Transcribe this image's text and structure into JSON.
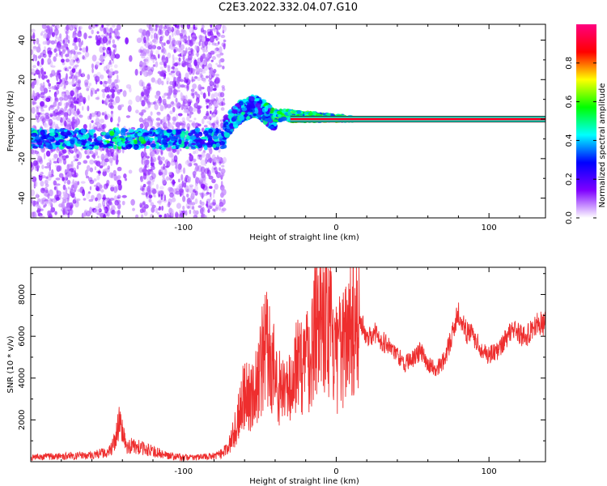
{
  "title": "C2E3.2022.332.04.07.G10",
  "chart_data": [
    {
      "type": "heatmap",
      "xlabel": "Height of straight line (km)",
      "ylabel": "Frequency (Hz)",
      "xlim": [
        -200,
        137
      ],
      "ylim": [
        -50,
        48
      ],
      "xticks": [
        -100,
        0,
        100
      ],
      "yticks": [
        -40,
        -20,
        0,
        20,
        40
      ],
      "grid": false,
      "colorbar": {
        "label": "Normalized spectral amplitude",
        "range": [
          0,
          1
        ],
        "ticks": [
          0.0,
          0.2,
          0.4,
          0.6,
          0.8
        ],
        "colors": [
          "#ffffff",
          "#7f00ff",
          "#0000ff",
          "#00ffff",
          "#00ff00",
          "#ffff00",
          "#ff0000",
          "#ff0080"
        ]
      },
      "features": [
        {
          "name": "diffuse noise region",
          "x_range": [
            -200,
            -73
          ],
          "y_range": [
            -50,
            48
          ],
          "amplitude": 0.1
        },
        {
          "name": "signal band",
          "x_range": [
            -200,
            -73
          ],
          "y_center": -10,
          "amplitude": 0.35
        },
        {
          "name": "signal rising",
          "x_range": [
            -73,
            -40
          ],
          "y_from": -5,
          "y_to": 6,
          "amplitude": 0.3
        },
        {
          "name": "signal converging",
          "x_range": [
            -40,
            12
          ],
          "y_center": 0,
          "amplitude": 0.6
        },
        {
          "name": "steady signal line",
          "x_range": [
            -30,
            137
          ],
          "y_center": 0,
          "amplitude": 0.9
        }
      ]
    },
    {
      "type": "line",
      "xlabel": "Height of straight line (km)",
      "ylabel": "SNR (10 * v/v)",
      "xlim": [
        -200,
        137
      ],
      "ylim": [
        0,
        9300
      ],
      "xticks": [
        -100,
        0,
        100
      ],
      "yticks": [
        2000,
        4000,
        6000,
        8000
      ],
      "grid": false,
      "color": "#ee2e2e",
      "series": [
        {
          "x": [
            -200,
            -190,
            -180,
            -170,
            -160,
            -150,
            -145,
            -142,
            -138,
            -130,
            -120,
            -110,
            -100,
            -90,
            -80,
            -75,
            -70,
            -65,
            -60,
            -55,
            -50,
            -45,
            -40,
            -35,
            -30,
            -25,
            -20,
            -15,
            -10,
            -5,
            0,
            5,
            10,
            15,
            20,
            25,
            30,
            35,
            40,
            45,
            50,
            55,
            60,
            65,
            70,
            75,
            80,
            85,
            90,
            95,
            100,
            105,
            110,
            115,
            120,
            125,
            130,
            137
          ],
          "y": [
            200,
            250,
            250,
            280,
            320,
            450,
            900,
            2000,
            800,
            700,
            500,
            300,
            200,
            220,
            260,
            400,
            800,
            1800,
            3500,
            3000,
            4500,
            5500,
            4200,
            3200,
            3500,
            5000,
            4500,
            6000,
            8000,
            6500,
            4800,
            5500,
            7000,
            6800,
            6000,
            6200,
            5800,
            5500,
            5100,
            4700,
            4900,
            5300,
            4700,
            4400,
            4800,
            5800,
            7200,
            6200,
            6000,
            5400,
            5100,
            5200,
            5800,
            6400,
            6100,
            6000,
            6600,
            6600
          ]
        }
      ]
    }
  ]
}
